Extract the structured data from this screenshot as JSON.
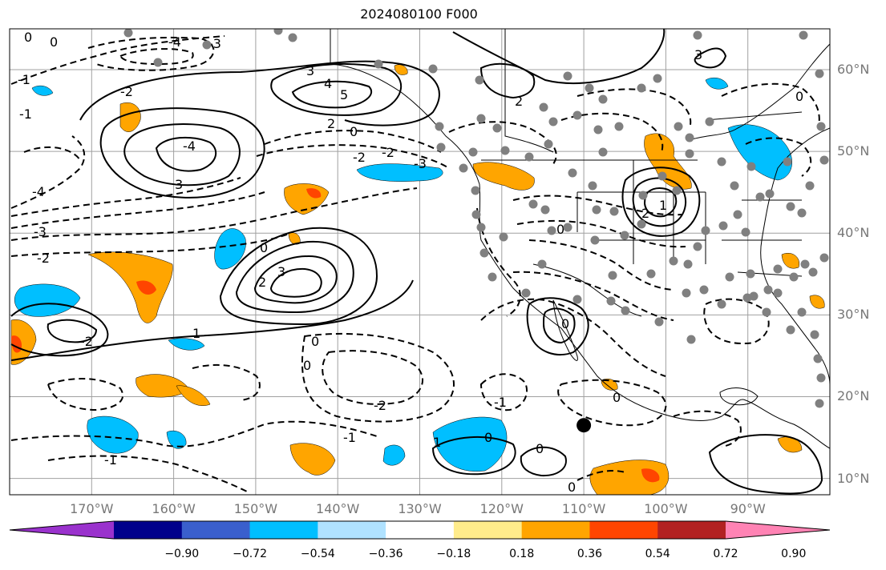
{
  "title": "2024080100 F000",
  "map": {
    "region": "North-East Pacific / North America",
    "projection": "equirectangular",
    "lon_range": [
      -180,
      -80
    ],
    "lat_range": [
      8,
      65
    ],
    "lat_ticks": [
      "60°N",
      "50°N",
      "40°N",
      "30°N",
      "20°N",
      "10°N"
    ],
    "lon_ticks": [
      "170°W",
      "160°W",
      "150°W",
      "140°W",
      "130°W",
      "120°W",
      "110°W",
      "100°W",
      "90°W"
    ],
    "marker": {
      "name": "storm-center",
      "lon": -110,
      "lat": 16.5
    }
  },
  "colorbar": {
    "ticks": [
      "−0.90",
      "−0.72",
      "−0.54",
      "−0.36",
      "−0.18",
      "0.18",
      "0.36",
      "0.54",
      "0.72",
      "0.90"
    ],
    "colors": [
      "#9a32cd",
      "#00008b",
      "#3a5fcd",
      "#00bfff",
      "#b0e2ff",
      "#ffffff",
      "#ffec8b",
      "#ffa500",
      "#ff4500",
      "#b22222",
      "#ff83b4"
    ]
  },
  "contour_labels": [
    "0",
    "1",
    "2",
    "3",
    "4",
    "5",
    "-1",
    "-2",
    "-3",
    "-4"
  ],
  "colors": {
    "grid": "#a0a0a0",
    "station": "#808080",
    "contour": "#000000",
    "axis_text": "#777777"
  }
}
